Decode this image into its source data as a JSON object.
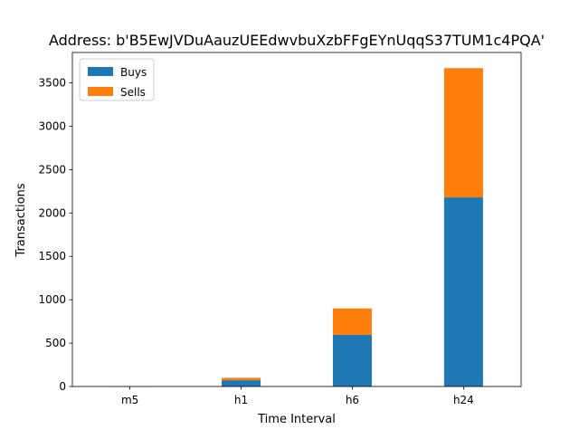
{
  "chart_data": {
    "type": "bar",
    "stacked": true,
    "title": "Address: b'B5EwJVDuAauzUEEdwvbuXzbFFgEYnUqqS37TUM1c4PQA'",
    "xlabel": "Time Interval",
    "ylabel": "Transactions",
    "categories": [
      "m5",
      "h1",
      "h6",
      "h24"
    ],
    "ylim": [
      0,
      3850
    ],
    "yticks": [
      0,
      500,
      1000,
      1500,
      2000,
      2500,
      3000,
      3500
    ],
    "series": [
      {
        "name": "Buys",
        "color": "#1f77b4",
        "values": [
          2,
          72,
          595,
          2180
        ]
      },
      {
        "name": "Sells",
        "color": "#ff7f0e",
        "values": [
          1,
          28,
          305,
          1490
        ]
      }
    ],
    "legend": "upper-left",
    "grid": false
  }
}
